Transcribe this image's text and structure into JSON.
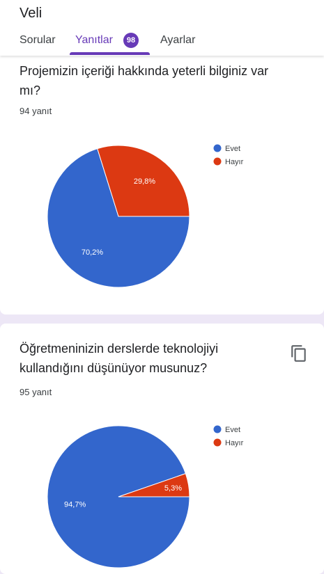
{
  "app": {
    "title": "Veli"
  },
  "tabs": [
    {
      "label": "Sorular"
    },
    {
      "label": "Yanıtlar",
      "badge": "98"
    },
    {
      "label": "Ayarlar"
    }
  ],
  "questions": [
    {
      "title": "Projemizin içeriği hakkında yeterli bilginiz var mı?",
      "responses": "94 yanıt"
    },
    {
      "title": "Öğretmeninizin derslerde teknolojiyi kullandığını düşünüyor musunuz?",
      "responses": "95 yanıt",
      "icon": "copy-icon"
    }
  ],
  "colors": {
    "accent": "#673ab7",
    "evet": "#3366cc",
    "hayir": "#dc3912"
  },
  "chart_data": [
    {
      "type": "pie",
      "labels": [
        "Evet",
        "Hayır"
      ],
      "values": [
        70.2,
        29.8
      ],
      "value_labels": [
        "70,2%",
        "29,8%"
      ],
      "colors": [
        "#3366cc",
        "#dc3912"
      ],
      "legend": "top-right"
    },
    {
      "type": "pie",
      "labels": [
        "Evet",
        "Hayır"
      ],
      "values": [
        94.7,
        5.3
      ],
      "value_labels": [
        "94,7%",
        "5,3%"
      ],
      "colors": [
        "#3366cc",
        "#dc3912"
      ],
      "legend": "top-right"
    }
  ]
}
